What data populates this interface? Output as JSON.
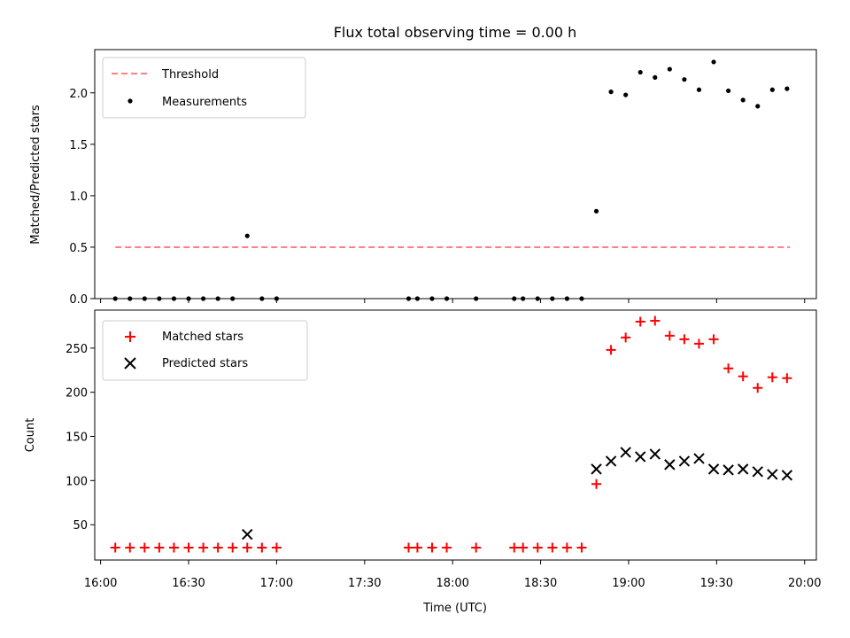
{
  "title": "Flux total observing time = 0.00 h",
  "colors": {
    "threshold": "#ff8080",
    "measurements": "#000000",
    "matched": "#ff0000",
    "predicted": "#000000"
  },
  "chart_data": [
    {
      "type": "scatter",
      "ylabel": "Matched/Predicted stars",
      "xlabel": "",
      "ylim": [
        0,
        2.42
      ],
      "yticks": [
        0.0,
        0.5,
        1.0,
        1.5,
        2.0
      ],
      "ytick_labels": [
        "0.0",
        "0.5",
        "1.0",
        "1.5",
        "2.0"
      ],
      "legend_position": "top-left",
      "series": [
        {
          "name": "Threshold",
          "style": "dashed-line",
          "x": [
            "16:05",
            "19:55"
          ],
          "y": [
            0.5,
            0.5
          ]
        },
        {
          "name": "Measurements",
          "style": "dot",
          "x": [
            "16:05",
            "16:10",
            "16:15",
            "16:20",
            "16:25",
            "16:30",
            "16:35",
            "16:40",
            "16:45",
            "16:50",
            "16:55",
            "17:00",
            "17:45",
            "17:48",
            "17:53",
            "17:58",
            "18:08",
            "18:21",
            "18:24",
            "18:29",
            "18:34",
            "18:39",
            "18:44",
            "18:49",
            "18:54",
            "18:59",
            "19:04",
            "19:09",
            "19:14",
            "19:19",
            "19:24",
            "19:29",
            "19:34",
            "19:39",
            "19:44",
            "19:49",
            "19:54"
          ],
          "y": [
            0,
            0,
            0,
            0,
            0,
            0,
            0,
            0,
            0,
            0.61,
            0,
            0,
            0,
            0,
            0,
            0,
            0,
            0,
            0,
            0,
            0,
            0,
            0,
            0.85,
            2.01,
            1.98,
            2.2,
            2.15,
            2.23,
            2.13,
            2.03,
            2.3,
            2.02,
            1.93,
            1.87,
            2.03,
            2.04
          ]
        }
      ]
    },
    {
      "type": "scatter",
      "ylabel": "Count",
      "xlabel": "Time (UTC)",
      "ylim": [
        10,
        293
      ],
      "yticks": [
        50,
        100,
        150,
        200,
        250
      ],
      "ytick_labels": [
        "50",
        "100",
        "150",
        "200",
        "250"
      ],
      "xlim": [
        "15:58",
        "20:04"
      ],
      "xtick_labels": [
        "16:00",
        "16:30",
        "17:00",
        "17:30",
        "18:00",
        "18:30",
        "19:00",
        "19:30",
        "20:00"
      ],
      "legend_position": "top-left",
      "series": [
        {
          "name": "Matched stars",
          "style": "plus",
          "x": [
            "16:05",
            "16:10",
            "16:15",
            "16:20",
            "16:25",
            "16:30",
            "16:35",
            "16:40",
            "16:45",
            "16:50",
            "16:55",
            "17:00",
            "17:45",
            "17:48",
            "17:53",
            "17:58",
            "18:08",
            "18:21",
            "18:24",
            "18:29",
            "18:34",
            "18:39",
            "18:44",
            "18:49",
            "18:54",
            "18:59",
            "19:04",
            "19:09",
            "19:14",
            "19:19",
            "19:24",
            "19:29",
            "19:34",
            "19:39",
            "19:44",
            "19:49",
            "19:54"
          ],
          "y": [
            24,
            24,
            24,
            24,
            24,
            24,
            24,
            24,
            24,
            24,
            24,
            24,
            24,
            24,
            24,
            24,
            24,
            24,
            24,
            24,
            24,
            24,
            24,
            96,
            248,
            262,
            280,
            281,
            264,
            260,
            255,
            260,
            227,
            218,
            205,
            217,
            216
          ]
        },
        {
          "name": "Predicted stars",
          "style": "x",
          "x": [
            "16:50",
            "18:49",
            "18:54",
            "18:59",
            "19:04",
            "19:09",
            "19:14",
            "19:19",
            "19:24",
            "19:29",
            "19:34",
            "19:39",
            "19:44",
            "19:49",
            "19:54"
          ],
          "y": [
            39,
            113,
            122,
            132,
            127,
            130,
            118,
            122,
            125,
            113,
            112,
            113,
            110,
            107,
            106
          ]
        }
      ]
    }
  ]
}
